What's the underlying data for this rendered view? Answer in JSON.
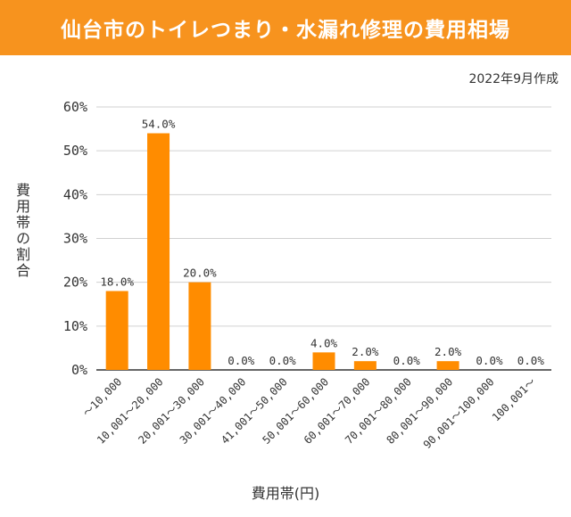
{
  "colors": {
    "accent": "#f7931e",
    "bar": "#ff8c00",
    "grid": "#d0d0d0"
  },
  "chart_data": {
    "type": "bar",
    "title": "仙台市のトイレつまり・水漏れ修理の費用相場",
    "subtitle": "2022年9月作成",
    "xlabel": "費用帯(円)",
    "ylabel": "費用帯の割合",
    "ylim": [
      0,
      60
    ],
    "yticks": [
      "0%",
      "10%",
      "20%",
      "30%",
      "40%",
      "50%",
      "60%"
    ],
    "categories": [
      "〜10,000",
      "10,001〜20,000",
      "20,001〜30,000",
      "30,001〜40,000",
      "41,001〜50,000",
      "50,001〜60,000",
      "60,001〜70,000",
      "70,001〜80,000",
      "80,001〜90,000",
      "90,001〜100,000",
      "100,001〜"
    ],
    "values": [
      18,
      54,
      20,
      0,
      0,
      4,
      2,
      0,
      2,
      0,
      0
    ],
    "data_labels": [
      "18.0%",
      "54.0%",
      "20.0%",
      "0.0%",
      "0.0%",
      "4.0%",
      "2.0%",
      "0.0%",
      "2.0%",
      "0.0%",
      "0.0%"
    ],
    "grid": true,
    "legend": "none"
  }
}
